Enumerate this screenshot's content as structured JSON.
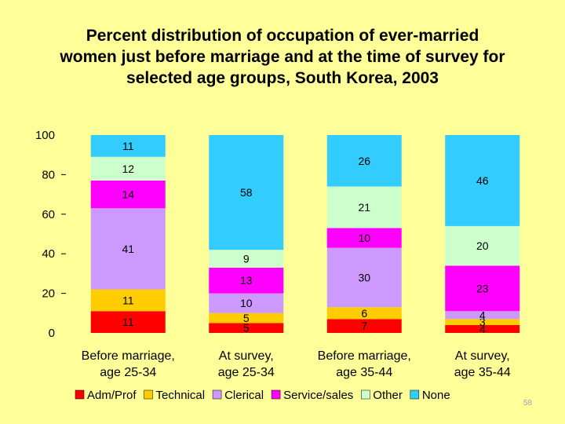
{
  "chart_data": {
    "type": "bar",
    "stacked": true,
    "title_lines": [
      "Percent distribution of occupation of ever-married",
      "women just before marriage and at the time of survey for",
      "selected age groups, South Korea, 2003"
    ],
    "categories": [
      [
        "Before marriage,",
        "age 25-34"
      ],
      [
        "At survey,",
        "age 25-34"
      ],
      [
        "Before marriage,",
        "age 35-44"
      ],
      [
        "At survey,",
        "age 35-44"
      ]
    ],
    "ylim": [
      0,
      100
    ],
    "yticks": [
      0,
      20,
      40,
      60,
      80,
      100
    ],
    "legend_position": "bottom",
    "series": [
      {
        "name": "Adm/Prof",
        "color": "#ff0000",
        "values": [
          11,
          5,
          7,
          4
        ],
        "labels": [
          "11",
          "5",
          "7",
          "4"
        ]
      },
      {
        "name": "Technical",
        "color": "#ffcc00",
        "values": [
          11,
          5,
          6,
          3
        ],
        "labels": [
          "11",
          "5",
          "6",
          "3"
        ]
      },
      {
        "name": "Clerical",
        "color": "#cc99ff",
        "values": [
          41,
          10,
          30,
          4
        ],
        "labels": [
          "41",
          "10",
          "30",
          "4"
        ]
      },
      {
        "name": "Service/sales",
        "color": "#ff00ff",
        "values": [
          14,
          13,
          10,
          23
        ],
        "labels": [
          "14",
          "13",
          "10",
          "23"
        ]
      },
      {
        "name": "Other",
        "color": "#ccffcc",
        "values": [
          12,
          9,
          21,
          20
        ],
        "labels": [
          "12",
          "9",
          "21",
          "20"
        ]
      },
      {
        "name": "None",
        "color": "#33ccff",
        "values": [
          11,
          58,
          26,
          46
        ],
        "labels": [
          "11",
          "58",
          "26",
          "46"
        ]
      }
    ]
  },
  "page_number": "58"
}
